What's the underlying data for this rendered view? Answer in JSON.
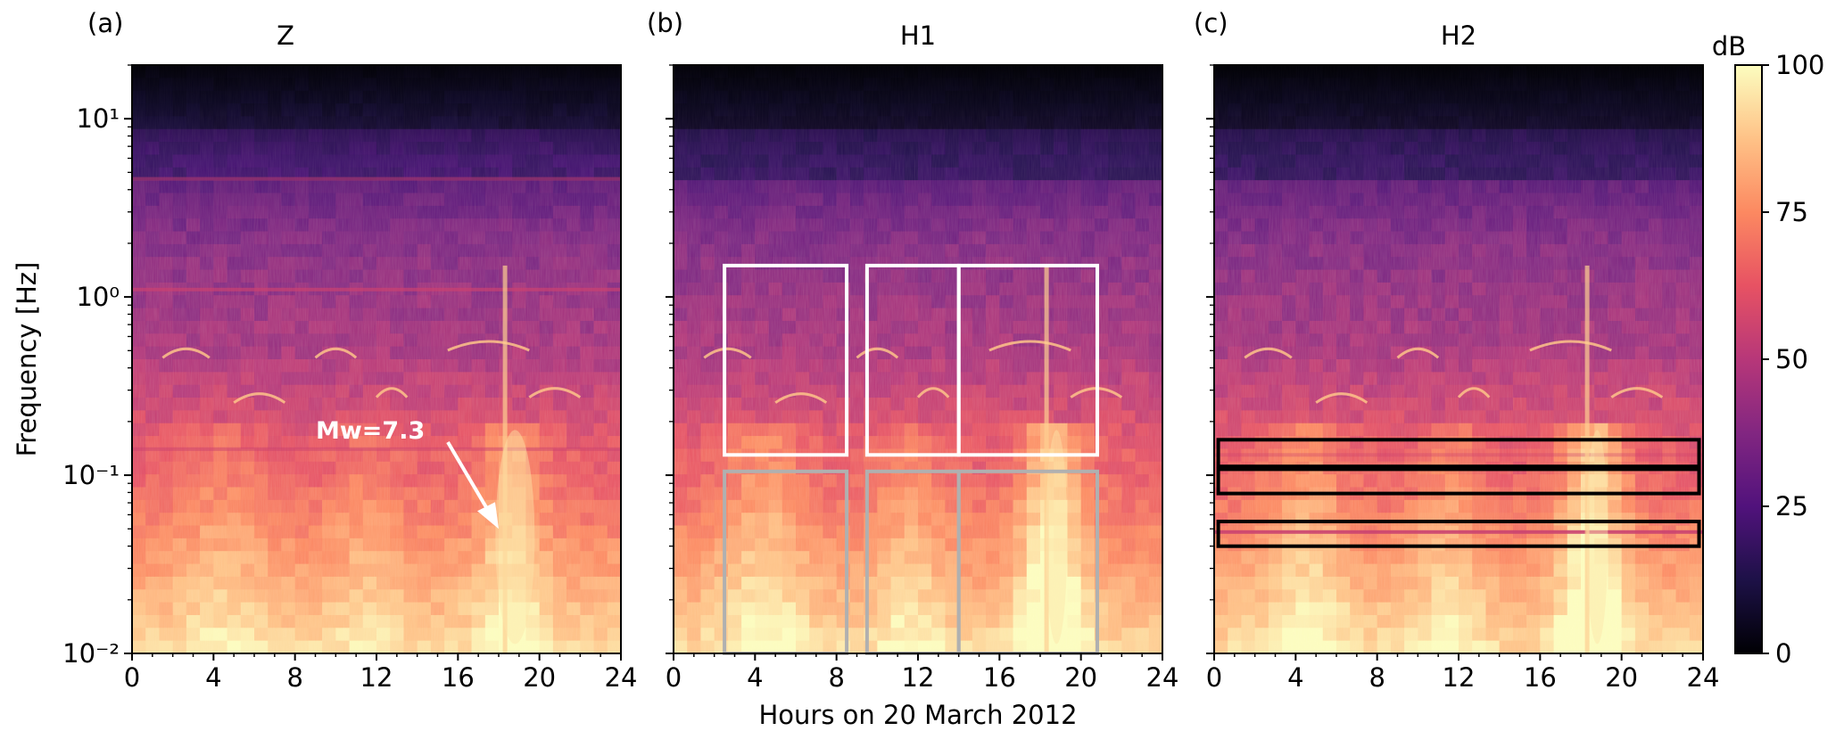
{
  "figure": {
    "xlabel": "Hours on 20 March 2012",
    "ylabel": "Frequency [Hz]",
    "colorbar": {
      "label": "dB",
      "ticks": [
        "0",
        "25",
        "50",
        "75",
        "100"
      ],
      "range": [
        0,
        100
      ],
      "colormap": "magma",
      "colormap_stops": [
        "#000004",
        "#1d1147",
        "#51127c",
        "#822681",
        "#b73779",
        "#e75263",
        "#fc8961",
        "#fec287",
        "#fcfdbf"
      ]
    },
    "annotation": {
      "text": "Mw=7.3",
      "panel": 0,
      "arrow_hour": 18.0,
      "arrow_freq_hz": 0.05
    }
  },
  "chart_data": [
    {
      "type": "heatmap",
      "panel_label": "(a)",
      "title": "Z",
      "x": {
        "label": "",
        "range": [
          0,
          24
        ],
        "ticks": [
          "0",
          "4",
          "8",
          "12",
          "16",
          "20",
          "24"
        ]
      },
      "y": {
        "scale": "log",
        "range": [
          0.01,
          20
        ],
        "ticks": [
          "10⁻²",
          "10⁻¹",
          "10⁰",
          "10¹"
        ]
      },
      "boxes": []
    },
    {
      "type": "heatmap",
      "panel_label": "(b)",
      "title": "H1",
      "x": {
        "label": "Hours on 20 March 2012",
        "range": [
          0,
          24
        ],
        "ticks": [
          "0",
          "4",
          "8",
          "12",
          "16",
          "20",
          "24"
        ]
      },
      "y": {
        "scale": "log",
        "range": [
          0.01,
          20
        ],
        "ticks": []
      },
      "boxes": [
        {
          "hours": [
            2.5,
            8.5
          ],
          "freq_hz": [
            0.13,
            1.5
          ],
          "color": "#ffffff"
        },
        {
          "hours": [
            9.5,
            14.0
          ],
          "freq_hz": [
            0.13,
            1.5
          ],
          "color": "#ffffff"
        },
        {
          "hours": [
            14.0,
            20.8
          ],
          "freq_hz": [
            0.13,
            1.5
          ],
          "color": "#ffffff"
        },
        {
          "hours": [
            2.5,
            8.5
          ],
          "freq_hz": [
            0.01,
            0.105
          ],
          "color": "#b0b0b0"
        },
        {
          "hours": [
            9.5,
            14.0
          ],
          "freq_hz": [
            0.01,
            0.105
          ],
          "color": "#b0b0b0"
        },
        {
          "hours": [
            14.0,
            20.8
          ],
          "freq_hz": [
            0.01,
            0.105
          ],
          "color": "#b0b0b0"
        }
      ]
    },
    {
      "type": "heatmap",
      "panel_label": "(c)",
      "title": "H2",
      "x": {
        "label": "",
        "range": [
          0,
          24
        ],
        "ticks": [
          "0",
          "4",
          "8",
          "12",
          "16",
          "20",
          "24"
        ]
      },
      "y": {
        "scale": "log",
        "range": [
          0.01,
          20
        ],
        "ticks": []
      },
      "boxes": [
        {
          "hours": [
            0.2,
            23.8
          ],
          "freq_hz": [
            0.112,
            0.158
          ],
          "color": "#000000"
        },
        {
          "hours": [
            0.2,
            23.8
          ],
          "freq_hz": [
            0.079,
            0.108
          ],
          "color": "#000000"
        },
        {
          "hours": [
            0.2,
            23.8
          ],
          "freq_hz": [
            0.04,
            0.055
          ],
          "color": "#000000"
        }
      ]
    }
  ]
}
